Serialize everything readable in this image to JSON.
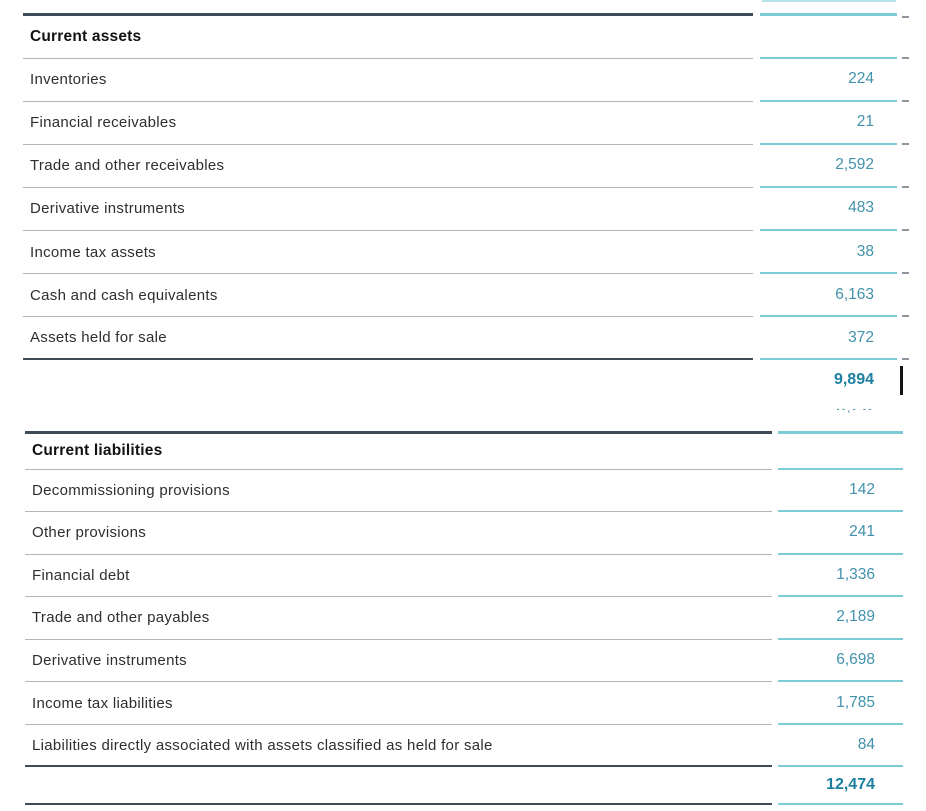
{
  "colors": {
    "teal_line": "#7ecbd8",
    "dark_rule": "#3e4b57",
    "gray_rule": "#b5b5b5",
    "value_text": "#4292ab",
    "total_text": "#1c80a0",
    "label_text": "#2e2e2e"
  },
  "assets_section": {
    "header": "Current assets",
    "rows": [
      {
        "label": "Inventories",
        "value": "224"
      },
      {
        "label": "Financial receivables",
        "value": "21"
      },
      {
        "label": "Trade and other receivables",
        "value": "2,592"
      },
      {
        "label": "Derivative instruments",
        "value": "483"
      },
      {
        "label": "Income tax assets",
        "value": "38"
      },
      {
        "label": "Cash and cash equivalents",
        "value": "6,163"
      },
      {
        "label": "Assets held for sale",
        "value": "372"
      }
    ],
    "total_value": "9,894",
    "obscured_fragment": "--,- --"
  },
  "liabilities_section": {
    "header": "Current liabilities",
    "rows": [
      {
        "label": "Decommissioning provisions",
        "value": "142"
      },
      {
        "label": "Other provisions",
        "value": "241"
      },
      {
        "label": "Financial debt",
        "value": "1,336"
      },
      {
        "label": "Trade and other payables",
        "value": "2,189"
      },
      {
        "label": "Derivative instruments",
        "value": "6,698"
      },
      {
        "label": "Income tax liabilities",
        "value": "1,785"
      },
      {
        "label": "Liabilities directly associated with assets classified as held for sale",
        "value": "84"
      }
    ],
    "total_value": "12,474"
  }
}
